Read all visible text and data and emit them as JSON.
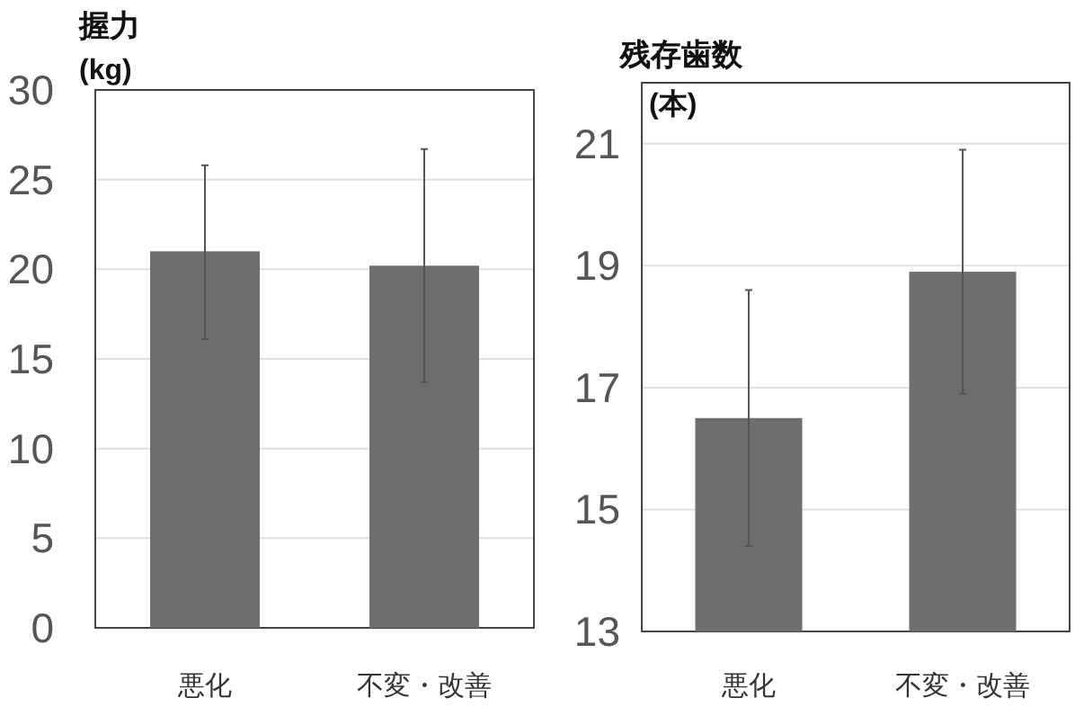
{
  "chart_data": [
    {
      "type": "bar",
      "title": "握力",
      "ylabel": "(kg)",
      "categories": [
        "悪化",
        "不変・改善"
      ],
      "values": [
        21.0,
        20.2
      ],
      "errors": [
        [
          16.1,
          25.8
        ],
        [
          13.7,
          26.7
        ]
      ],
      "color": "#6e6e6e",
      "ylim": [
        0,
        30
      ],
      "yticks": [
        0,
        5,
        10,
        15,
        20,
        25,
        30
      ],
      "grid": "y"
    },
    {
      "type": "bar",
      "title": "残存歯数",
      "ylabel": "(本)",
      "categories": [
        "悪化",
        "不変・改善"
      ],
      "values": [
        16.5,
        18.9
      ],
      "errors": [
        [
          14.4,
          18.6
        ],
        [
          16.9,
          20.9
        ]
      ],
      "color": "#6e6e6e",
      "ylim": [
        13,
        22
      ],
      "yticks": [
        13,
        15,
        17,
        19,
        21
      ],
      "grid": "y"
    }
  ]
}
